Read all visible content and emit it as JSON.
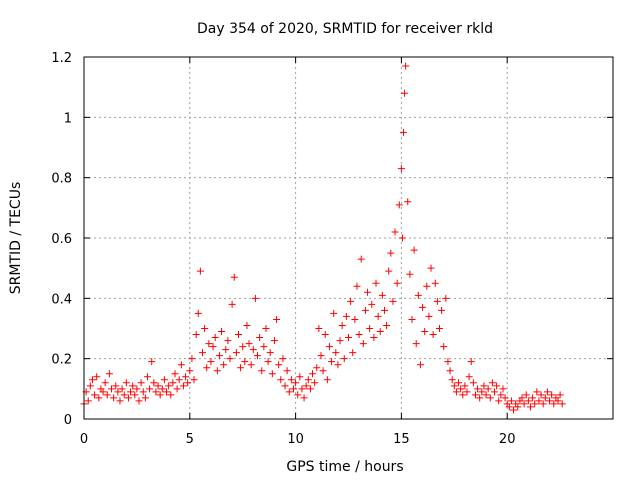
{
  "chart_data": {
    "type": "scatter",
    "title": "Day 354 of 2020, SRMTID for receiver rkld",
    "xlabel": "GPS time / hours",
    "ylabel": "SRMTID / TECUs",
    "xlim": [
      0,
      25
    ],
    "ylim": [
      0,
      1.2
    ],
    "x_ticks": [
      0,
      5,
      10,
      15,
      20
    ],
    "x_tick_labels": [
      "0",
      "5",
      "10",
      "15",
      "20"
    ],
    "y_ticks": [
      0,
      0.2,
      0.4,
      0.6,
      0.8,
      1.0,
      1.2
    ],
    "y_tick_labels": [
      "0",
      "0.2",
      "0.4",
      "0.6",
      "0.8",
      "1",
      "1.2"
    ],
    "grid": true,
    "marker": "plus",
    "series": [
      {
        "name": "SRMTID",
        "color": "#ff0000",
        "x": [
          0.0,
          0.1,
          0.2,
          0.3,
          0.4,
          0.5,
          0.6,
          0.7,
          0.8,
          0.9,
          1.0,
          1.1,
          1.2,
          1.3,
          1.4,
          1.5,
          1.6,
          1.7,
          1.8,
          1.9,
          2.0,
          2.1,
          2.2,
          2.3,
          2.4,
          2.5,
          2.6,
          2.7,
          2.8,
          2.9,
          3.0,
          3.1,
          3.2,
          3.3,
          3.4,
          3.5,
          3.6,
          3.7,
          3.8,
          3.9,
          4.0,
          4.1,
          4.2,
          4.3,
          4.4,
          4.5,
          4.6,
          4.7,
          4.8,
          4.9,
          5.0,
          5.1,
          5.2,
          5.3,
          5.4,
          5.5,
          5.6,
          5.7,
          5.8,
          5.9,
          6.0,
          6.1,
          6.2,
          6.3,
          6.4,
          6.5,
          6.6,
          6.7,
          6.8,
          6.9,
          7.0,
          7.1,
          7.2,
          7.3,
          7.4,
          7.5,
          7.6,
          7.7,
          7.8,
          7.9,
          8.0,
          8.1,
          8.2,
          8.3,
          8.4,
          8.5,
          8.6,
          8.7,
          8.8,
          8.9,
          9.0,
          9.1,
          9.2,
          9.3,
          9.4,
          9.5,
          9.6,
          9.7,
          9.8,
          9.9,
          10.0,
          10.1,
          10.2,
          10.3,
          10.4,
          10.5,
          10.6,
          10.7,
          10.8,
          10.9,
          11.0,
          11.1,
          11.2,
          11.3,
          11.4,
          11.5,
          11.6,
          11.7,
          11.8,
          11.9,
          12.0,
          12.1,
          12.2,
          12.3,
          12.4,
          12.5,
          12.6,
          12.7,
          12.8,
          12.9,
          13.0,
          13.1,
          13.2,
          13.3,
          13.4,
          13.5,
          13.6,
          13.7,
          13.8,
          13.9,
          14.0,
          14.1,
          14.2,
          14.3,
          14.4,
          14.5,
          14.6,
          14.7,
          14.8,
          14.9,
          15.0,
          15.05,
          15.1,
          15.15,
          15.2,
          15.3,
          15.4,
          15.5,
          15.6,
          15.7,
          15.8,
          15.9,
          16.0,
          16.1,
          16.2,
          16.3,
          16.4,
          16.5,
          16.6,
          16.7,
          16.8,
          16.9,
          17.0,
          17.1,
          17.2,
          17.3,
          17.4,
          17.5,
          17.6,
          17.7,
          17.8,
          17.9,
          18.0,
          18.1,
          18.2,
          18.3,
          18.4,
          18.5,
          18.6,
          18.7,
          18.8,
          18.9,
          19.0,
          19.1,
          19.2,
          19.3,
          19.4,
          19.5,
          19.6,
          19.7,
          19.8,
          19.9,
          20.0,
          20.1,
          20.2,
          20.3,
          20.4,
          20.5,
          20.6,
          20.7,
          20.8,
          20.9,
          21.0,
          21.1,
          21.2,
          21.3,
          21.4,
          21.5,
          21.6,
          21.7,
          21.8,
          21.9,
          22.0,
          22.1,
          22.2,
          22.3,
          22.4,
          22.5,
          22.6
        ],
        "y": [
          0.05,
          0.09,
          0.06,
          0.11,
          0.13,
          0.08,
          0.14,
          0.07,
          0.1,
          0.09,
          0.12,
          0.08,
          0.15,
          0.1,
          0.07,
          0.11,
          0.09,
          0.06,
          0.1,
          0.08,
          0.12,
          0.07,
          0.09,
          0.11,
          0.08,
          0.1,
          0.06,
          0.12,
          0.09,
          0.07,
          0.14,
          0.1,
          0.19,
          0.12,
          0.09,
          0.11,
          0.08,
          0.1,
          0.13,
          0.09,
          0.11,
          0.08,
          0.12,
          0.15,
          0.1,
          0.13,
          0.18,
          0.11,
          0.14,
          0.12,
          0.16,
          0.2,
          0.13,
          0.28,
          0.35,
          0.49,
          0.22,
          0.3,
          0.17,
          0.25,
          0.19,
          0.24,
          0.27,
          0.16,
          0.21,
          0.29,
          0.18,
          0.23,
          0.26,
          0.2,
          0.38,
          0.47,
          0.22,
          0.28,
          0.17,
          0.24,
          0.19,
          0.31,
          0.25,
          0.18,
          0.23,
          0.4,
          0.21,
          0.27,
          0.16,
          0.24,
          0.3,
          0.19,
          0.22,
          0.15,
          0.26,
          0.33,
          0.18,
          0.13,
          0.2,
          0.11,
          0.16,
          0.09,
          0.13,
          0.1,
          0.12,
          0.08,
          0.14,
          0.1,
          0.07,
          0.11,
          0.13,
          0.1,
          0.15,
          0.12,
          0.17,
          0.3,
          0.21,
          0.16,
          0.28,
          0.13,
          0.24,
          0.19,
          0.35,
          0.22,
          0.18,
          0.26,
          0.31,
          0.2,
          0.34,
          0.27,
          0.39,
          0.22,
          0.33,
          0.44,
          0.28,
          0.53,
          0.25,
          0.36,
          0.42,
          0.3,
          0.38,
          0.27,
          0.45,
          0.34,
          0.29,
          0.41,
          0.36,
          0.31,
          0.49,
          0.55,
          0.39,
          0.62,
          0.45,
          0.71,
          0.83,
          0.6,
          0.95,
          1.08,
          1.17,
          0.72,
          0.48,
          0.33,
          0.56,
          0.25,
          0.41,
          0.18,
          0.37,
          0.29,
          0.44,
          0.34,
          0.5,
          0.28,
          0.45,
          0.39,
          0.3,
          0.36,
          0.24,
          0.4,
          0.19,
          0.16,
          0.13,
          0.11,
          0.09,
          0.12,
          0.1,
          0.08,
          0.11,
          0.09,
          0.14,
          0.19,
          0.12,
          0.08,
          0.1,
          0.07,
          0.09,
          0.11,
          0.08,
          0.1,
          0.07,
          0.12,
          0.09,
          0.11,
          0.06,
          0.08,
          0.1,
          0.07,
          0.05,
          0.04,
          0.06,
          0.03,
          0.05,
          0.04,
          0.06,
          0.07,
          0.05,
          0.08,
          0.06,
          0.04,
          0.07,
          0.05,
          0.09,
          0.06,
          0.08,
          0.05,
          0.07,
          0.09,
          0.06,
          0.08,
          0.05,
          0.07,
          0.06,
          0.08,
          0.05
        ]
      }
    ]
  }
}
